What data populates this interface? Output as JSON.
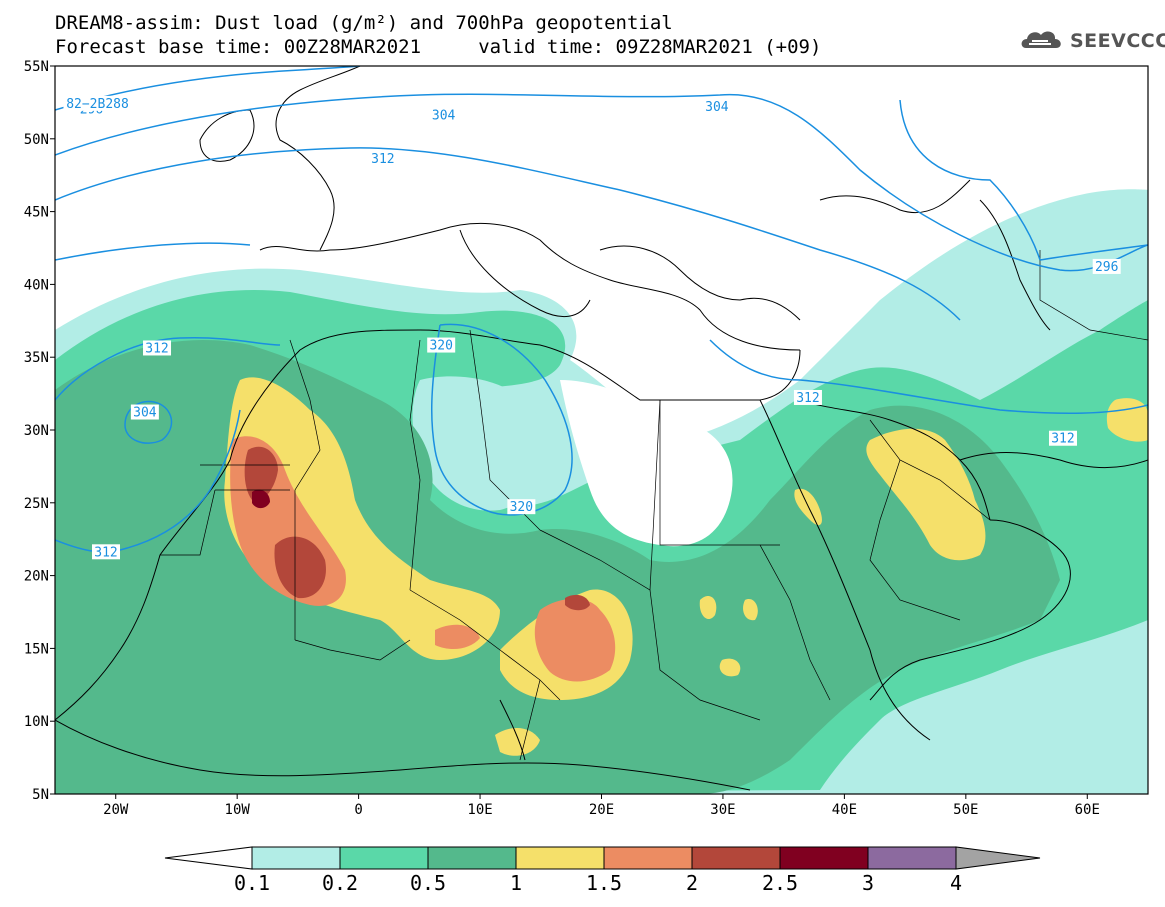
{
  "title": {
    "line1": "DREAM8-assim: Dust load (g/m²) and 700hPa geopotential",
    "line2": "Forecast base time: 00Z28MAR2021     valid time: 09Z28MAR2021 (+09)"
  },
  "logo": {
    "text": "SEEVCCC",
    "icon": "cloud-icon"
  },
  "map": {
    "lon_range": [
      -25,
      65
    ],
    "lat_range": [
      5,
      55
    ],
    "lat_ticks": [
      {
        "value": 55,
        "label": "55N"
      },
      {
        "value": 50,
        "label": "50N"
      },
      {
        "value": 45,
        "label": "45N"
      },
      {
        "value": 40,
        "label": "40N"
      },
      {
        "value": 35,
        "label": "35N"
      },
      {
        "value": 30,
        "label": "30N"
      },
      {
        "value": 25,
        "label": "25N"
      },
      {
        "value": 20,
        "label": "20N"
      },
      {
        "value": 15,
        "label": "15N"
      },
      {
        "value": 10,
        "label": "10N"
      },
      {
        "value": 5,
        "label": "5N"
      }
    ],
    "lon_ticks": [
      {
        "value": -20,
        "label": "20W"
      },
      {
        "value": -10,
        "label": "10W"
      },
      {
        "value": 0,
        "label": "0"
      },
      {
        "value": 10,
        "label": "10E"
      },
      {
        "value": 20,
        "label": "20E"
      },
      {
        "value": 30,
        "label": "30E"
      },
      {
        "value": 40,
        "label": "40E"
      },
      {
        "value": 50,
        "label": "50E"
      },
      {
        "value": 60,
        "label": "60E"
      }
    ],
    "contour_labels": [
      {
        "text": "296",
        "lon": -22,
        "lat": 52
      },
      {
        "text": "304",
        "lon": 29.5,
        "lat": 52.2
      },
      {
        "text": "312",
        "lon": 2,
        "lat": 48.6
      },
      {
        "text": "304",
        "lon": 7,
        "lat": 51.6
      },
      {
        "text": "312",
        "lon": -16.6,
        "lat": 35.6
      },
      {
        "text": "320",
        "lon": 6.8,
        "lat": 35.8
      },
      {
        "text": "304",
        "lon": -17.6,
        "lat": 31.2
      },
      {
        "text": "312",
        "lon": 37,
        "lat": 32.2
      },
      {
        "text": "312",
        "lon": 58,
        "lat": 29.4
      },
      {
        "text": "296",
        "lon": 61.6,
        "lat": 41.2
      },
      {
        "text": "320",
        "lon": 13.4,
        "lat": 24.7
      },
      {
        "text": "312",
        "lon": -20.8,
        "lat": 21.6
      },
      {
        "text": "82−2B288",
        "lon": -21.5,
        "lat": 52.4
      }
    ]
  },
  "colorbar": {
    "colors": [
      "#ffffff",
      "#b2ede6",
      "#5ad8a8",
      "#54b98c",
      "#f5e06a",
      "#ec8c62",
      "#b3473a",
      "#800020",
      "#8c6a9f",
      "#a3a3a3"
    ],
    "labels": [
      "0.1",
      "0.2",
      "0.5",
      "1",
      "1.5",
      "2",
      "2.5",
      "3",
      "4"
    ]
  }
}
